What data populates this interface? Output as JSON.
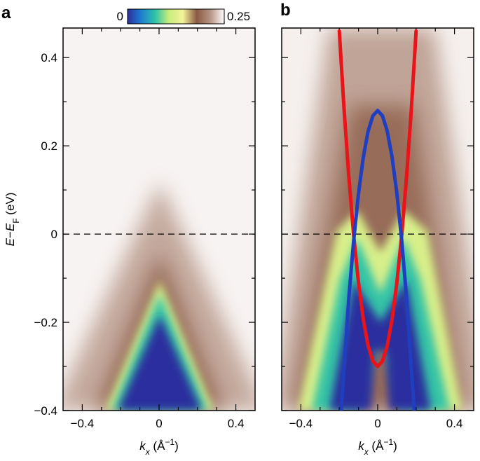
{
  "chart_data": [
    {
      "type": "heatmap",
      "panel_label": "a",
      "x_label": [
        "k",
        "x",
        " (Å",
        "−1",
        ")"
      ],
      "y_label": [
        "E",
        "−",
        "E",
        "F",
        " (eV)"
      ],
      "xlim": [
        -0.5,
        0.5
      ],
      "ylim": [
        -0.4,
        0.467
      ],
      "xticks": [
        {
          "value": -0.4,
          "label": "−0.4"
        },
        0,
        0.4
      ],
      "xticks_minor": [
        -0.3,
        -0.2,
        -0.1,
        0.1,
        0.2,
        0.3
      ],
      "yticks": [
        {
          "value": -0.4,
          "label": "−0.4"
        },
        {
          "value": -0.2,
          "label": "−0.2"
        },
        0,
        0.2,
        0.4
      ],
      "yticks_minor": [
        -0.3,
        -0.1,
        0.1,
        0.3
      ],
      "ytick_labels": true,
      "hline": 0,
      "colorbar": {
        "ticks": [
          0,
          0.25
        ],
        "colors": [
          "#2b2f9e",
          "#1e7fd0",
          "#2fc4a8",
          "#c8ec7a",
          "#f3f39b",
          "#8a5a44",
          "#b59585",
          "#ffffff"
        ]
      }
    },
    {
      "type": "heatmap",
      "panel_label": "b",
      "x_label": [
        "k",
        "x",
        " (Å",
        "−1",
        ")"
      ],
      "xlim": [
        -0.5,
        0.5
      ],
      "ylim": [
        -0.4,
        0.467
      ],
      "xticks": [
        {
          "value": -0.4,
          "label": "−0.4"
        },
        0,
        0.4
      ],
      "xticks_minor": [
        -0.3,
        -0.2,
        -0.1,
        0.1,
        0.2,
        0.3
      ],
      "yticks": [
        -0.4,
        -0.2,
        0,
        0.2,
        0.4
      ],
      "yticks_minor": [
        -0.3,
        -0.1,
        0.1,
        0.3
      ],
      "ytick_labels": false,
      "hline": 0,
      "series": [
        {
          "color": "#e8141a",
          "x": [
            -0.2,
            -0.175,
            -0.15,
            -0.125,
            -0.1,
            -0.075,
            -0.05,
            -0.025,
            0,
            0.025,
            0.05,
            0.075,
            0.1,
            0.125,
            0.15,
            0.175,
            0.2
          ],
          "values": [
            0.46,
            0.282,
            0.128,
            -0.003,
            -0.11,
            -0.193,
            -0.253,
            -0.288,
            -0.3,
            -0.288,
            -0.253,
            -0.193,
            -0.11,
            -0.003,
            0.128,
            0.282,
            0.46
          ]
        },
        {
          "color": "#1f3fc0",
          "x": [
            -0.19,
            -0.15,
            -0.125,
            -0.1,
            -0.075,
            -0.05,
            -0.025,
            0,
            0.025,
            0.05,
            0.075,
            0.1,
            0.125,
            0.15,
            0.19
          ],
          "values": [
            -0.399,
            -0.143,
            -0.014,
            0.092,
            0.174,
            0.233,
            0.268,
            0.28,
            0.268,
            0.233,
            0.174,
            0.092,
            -0.014,
            -0.143,
            -0.399
          ]
        }
      ]
    }
  ]
}
